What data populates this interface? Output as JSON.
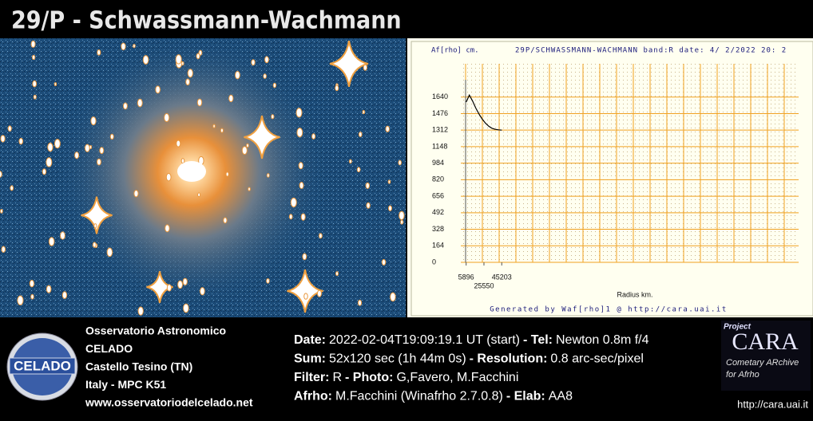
{
  "header": {
    "title": "29/P - Schwassmann-Wachmann"
  },
  "chart_data": {
    "type": "line",
    "title": "29P/SCHWASSMANN-WACHMANN band:R date:  4/ 2/2022 20: 2",
    "y_label": "Af[rho] cm.",
    "x_label": "Radius km.",
    "footer": "Generated by Waf[rho]1 @ http://cara.uai.it",
    "x": [
      5896,
      9469,
      13042,
      16615,
      20188,
      23761,
      27334,
      30907,
      34480,
      38053,
      41626,
      45203
    ],
    "series": [
      {
        "name": "Af[rho]",
        "color": "#000000",
        "values": [
          1590,
          1660,
          1600,
          1530,
          1470,
          1420,
          1380,
          1350,
          1330,
          1320,
          1315,
          1312
        ]
      }
    ],
    "xlim": [
      0,
      373000
    ],
    "ylim": [
      0,
      1970
    ],
    "xticks": [
      5896,
      25550,
      45203
    ],
    "yticks": [
      0,
      164,
      328,
      492,
      656,
      820,
      984,
      1148,
      1312,
      1476,
      1640
    ],
    "grid": true,
    "grid_color": "#f0a020"
  },
  "observatory": {
    "lines": [
      "Osservatorio Astronomico",
      "CELADO",
      "Castello Tesino (TN)",
      "Italy - MPC K51",
      "www.osservatoriodelcelado.net"
    ],
    "logo": "CELADO"
  },
  "info": {
    "lines": [
      [
        {
          "label": "Date:",
          "text": "2022-02-04T19:09:19.1 UT (start)"
        },
        {
          "label": "- Tel:",
          "text": "Newton 0.8m f/4"
        }
      ],
      [
        {
          "label": "Sum:",
          "text": "52x120 sec (1h 44m 0s)"
        },
        {
          "label": "- Resolution:",
          "text": "0.8 arc-sec/pixel"
        }
      ],
      [
        {
          "label": "Filter:",
          "text": "R"
        },
        {
          "label": "- Photo:",
          "text": "G,Favero, M.Facchini"
        }
      ],
      [
        {
          "label": "Afrho:",
          "text": "M.Facchini (Winafrho 2.7.0.8)"
        },
        {
          "label": "- Elab:",
          "text": "AA8"
        }
      ]
    ]
  },
  "cara": {
    "project": "Project",
    "name": "CARA",
    "subtitle1": "Cometary ARchive",
    "subtitle2": "for Afrho",
    "url": "http://cara.uai.it"
  }
}
